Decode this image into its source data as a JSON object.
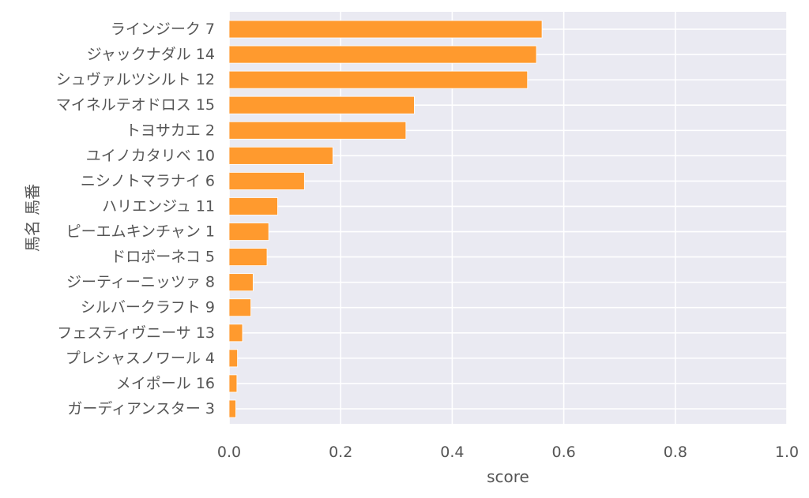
{
  "chart_data": {
    "type": "bar",
    "orientation": "horizontal",
    "xlabel": "score",
    "ylabel": "馬名 馬番",
    "xlim": [
      0,
      1.0
    ],
    "xticks": [
      "0.0",
      "0.2",
      "0.4",
      "0.6",
      "0.8",
      "1.0"
    ],
    "grid": true,
    "bar_color": "#ff9a2e",
    "background_color": "#eaeaf2",
    "categories": [
      "ラインジーク 7",
      "ジャックナダル 14",
      "シュヴァルツシルト 12",
      "マイネルテオドロス 15",
      "トヨサカエ 2",
      "ユイノカタリベ 10",
      "ニシノトマラナイ 6",
      "ハリエンジュ 11",
      "ピーエムキンチャン 1",
      "ドロボーネコ 5",
      "ジーティーニッツァ 8",
      "シルバークラフト 9",
      "フェスティヴニーサ 13",
      "プレシャスノワール 4",
      "メイポール 16",
      "ガーディアンスター 3"
    ],
    "values": [
      0.561,
      0.551,
      0.535,
      0.332,
      0.317,
      0.186,
      0.135,
      0.087,
      0.071,
      0.068,
      0.043,
      0.039,
      0.024,
      0.015,
      0.014,
      0.012
    ]
  }
}
